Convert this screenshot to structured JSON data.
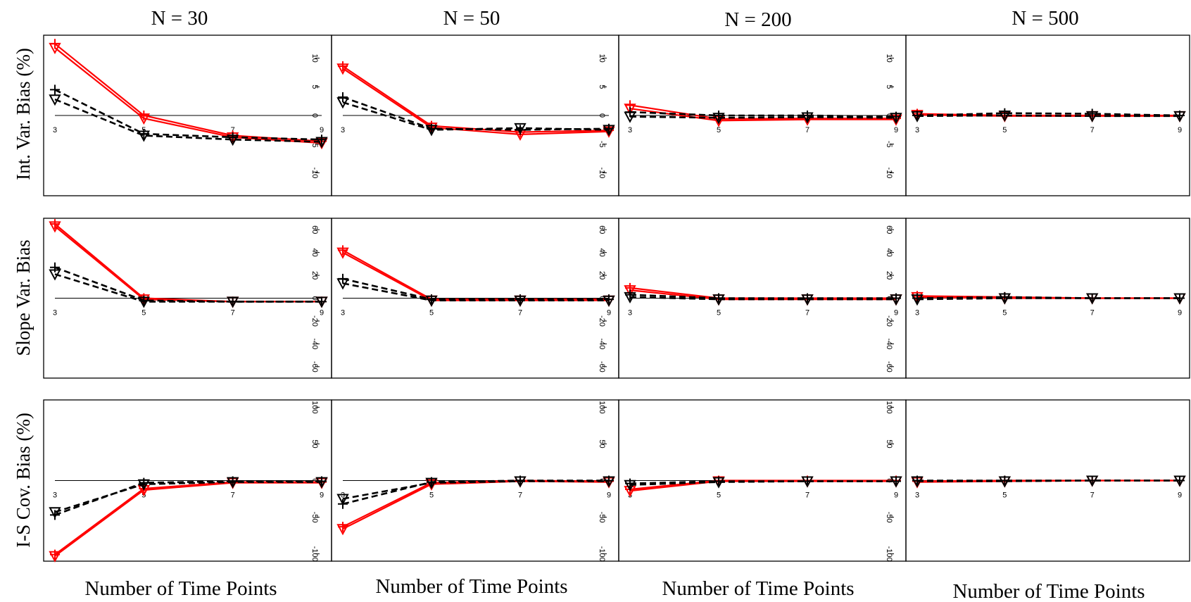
{
  "figure": {
    "column_titles": [
      "N = 30",
      "N = 50",
      "N = 200",
      "N = 500"
    ],
    "row_labels": [
      "Int. Var. Bias (%)",
      "Slope Var. Bias",
      "I-S Cov. Bias (%)"
    ],
    "x_axis_label": "Number of Time Points",
    "colors": {
      "red": "#ff0000",
      "black": "#000000"
    },
    "marker_shapes": [
      "plus",
      "triangle-down"
    ]
  },
  "chart_data": [
    {
      "type": "line",
      "row": "Int. Var. Bias (%)",
      "column": "N = 30",
      "x": [
        3,
        5,
        7,
        9
      ],
      "ylim": [
        -14,
        14
      ],
      "yticks": [
        -10,
        -5,
        0,
        5,
        10
      ],
      "series": [
        {
          "color": "#ff0000",
          "style": "solid",
          "marker": "plus",
          "values": [
            12.5,
            0.0,
            -3.5,
            -4.5
          ]
        },
        {
          "color": "#ff0000",
          "style": "solid",
          "marker": "triangle-down",
          "values": [
            11.8,
            -0.5,
            -3.8,
            -4.8
          ]
        },
        {
          "color": "#000000",
          "style": "dashed",
          "marker": "plus",
          "values": [
            4.5,
            -3.2,
            -3.8,
            -4.2
          ]
        },
        {
          "color": "#000000",
          "style": "dashed",
          "marker": "triangle-down",
          "values": [
            2.8,
            -3.5,
            -4.2,
            -4.6
          ]
        }
      ]
    },
    {
      "type": "line",
      "row": "Int. Var. Bias (%)",
      "column": "N = 50",
      "x": [
        3,
        5,
        7,
        9
      ],
      "ylim": [
        -14,
        14
      ],
      "yticks": [
        -10,
        -5,
        0,
        5,
        10
      ],
      "series": [
        {
          "color": "#ff0000",
          "style": "solid",
          "marker": "plus",
          "values": [
            8.6,
            -1.8,
            -2.9,
            -2.6
          ]
        },
        {
          "color": "#ff0000",
          "style": "solid",
          "marker": "triangle-down",
          "values": [
            8.2,
            -2.1,
            -3.3,
            -2.8
          ]
        },
        {
          "color": "#000000",
          "style": "dashed",
          "marker": "plus",
          "values": [
            3.2,
            -2.3,
            -2.5,
            -2.3
          ]
        },
        {
          "color": "#000000",
          "style": "dashed",
          "marker": "triangle-down",
          "values": [
            2.3,
            -2.5,
            -2.2,
            -2.5
          ]
        }
      ]
    },
    {
      "type": "line",
      "row": "Int. Var. Bias (%)",
      "column": "N = 200",
      "x": [
        3,
        5,
        7,
        9
      ],
      "ylim": [
        -14,
        14
      ],
      "yticks": [
        -10,
        -5,
        0,
        5,
        10
      ],
      "series": [
        {
          "color": "#ff0000",
          "style": "solid",
          "marker": "plus",
          "values": [
            1.8,
            -0.6,
            -0.5,
            -0.5
          ]
        },
        {
          "color": "#ff0000",
          "style": "solid",
          "marker": "triangle-down",
          "values": [
            1.2,
            -0.9,
            -0.7,
            -0.7
          ]
        },
        {
          "color": "#000000",
          "style": "dashed",
          "marker": "plus",
          "values": [
            0.6,
            0.0,
            0.0,
            -0.2
          ]
        },
        {
          "color": "#000000",
          "style": "dashed",
          "marker": "triangle-down",
          "values": [
            -0.2,
            -0.4,
            -0.3,
            -0.4
          ]
        }
      ]
    },
    {
      "type": "line",
      "row": "Int. Var. Bias (%)",
      "column": "N = 500",
      "x": [
        3,
        5,
        7,
        9
      ],
      "ylim": [
        -14,
        14
      ],
      "yticks": [
        -10,
        -5,
        0,
        5,
        10
      ],
      "series": [
        {
          "color": "#ff0000",
          "style": "solid",
          "marker": "plus",
          "values": [
            0.3,
            0.0,
            0.0,
            0.0
          ]
        },
        {
          "color": "#ff0000",
          "style": "solid",
          "marker": "triangle-down",
          "values": [
            0.1,
            -0.1,
            -0.1,
            -0.1
          ]
        },
        {
          "color": "#000000",
          "style": "dashed",
          "marker": "plus",
          "values": [
            0.0,
            0.4,
            0.3,
            0.0
          ]
        },
        {
          "color": "#000000",
          "style": "dashed",
          "marker": "triangle-down",
          "values": [
            -0.1,
            0.0,
            -0.1,
            -0.1
          ]
        }
      ]
    },
    {
      "type": "line",
      "row": "Slope Var. Bias",
      "column": "N = 30",
      "x": [
        3,
        5,
        7,
        9
      ],
      "ylim": [
        -70,
        70
      ],
      "yticks": [
        -60,
        -40,
        -20,
        0,
        20,
        40,
        60
      ],
      "series": [
        {
          "color": "#ff0000",
          "style": "solid",
          "marker": "plus",
          "values": [
            65,
            0,
            -3,
            -3
          ]
        },
        {
          "color": "#ff0000",
          "style": "solid",
          "marker": "triangle-down",
          "values": [
            63,
            -1,
            -3,
            -3
          ]
        },
        {
          "color": "#000000",
          "style": "dashed",
          "marker": "plus",
          "values": [
            27,
            -2,
            -3,
            -3
          ]
        },
        {
          "color": "#000000",
          "style": "dashed",
          "marker": "triangle-down",
          "values": [
            21,
            -3,
            -3,
            -3
          ]
        }
      ]
    },
    {
      "type": "line",
      "row": "Slope Var. Bias",
      "column": "N = 50",
      "x": [
        3,
        5,
        7,
        9
      ],
      "ylim": [
        -70,
        70
      ],
      "yticks": [
        -60,
        -40,
        -20,
        0,
        20,
        40,
        60
      ],
      "series": [
        {
          "color": "#ff0000",
          "style": "solid",
          "marker": "plus",
          "values": [
            42,
            -1,
            -1,
            -1
          ]
        },
        {
          "color": "#ff0000",
          "style": "solid",
          "marker": "triangle-down",
          "values": [
            40,
            -2,
            -2,
            -2
          ]
        },
        {
          "color": "#000000",
          "style": "dashed",
          "marker": "plus",
          "values": [
            17,
            -1,
            -1,
            -1
          ]
        },
        {
          "color": "#000000",
          "style": "dashed",
          "marker": "triangle-down",
          "values": [
            13,
            -2,
            -2,
            -2
          ]
        }
      ]
    },
    {
      "type": "line",
      "row": "Slope Var. Bias",
      "column": "N = 200",
      "x": [
        3,
        5,
        7,
        9
      ],
      "ylim": [
        -70,
        70
      ],
      "yticks": [
        -60,
        -40,
        -20,
        0,
        20,
        40,
        60
      ],
      "series": [
        {
          "color": "#ff0000",
          "style": "solid",
          "marker": "plus",
          "values": [
            9,
            0,
            0,
            0
          ]
        },
        {
          "color": "#ff0000",
          "style": "solid",
          "marker": "triangle-down",
          "values": [
            7,
            -1,
            -1,
            -1
          ]
        },
        {
          "color": "#000000",
          "style": "dashed",
          "marker": "plus",
          "values": [
            3,
            0,
            0,
            0
          ]
        },
        {
          "color": "#000000",
          "style": "dashed",
          "marker": "triangle-down",
          "values": [
            1,
            -1,
            -1,
            -1
          ]
        }
      ]
    },
    {
      "type": "line",
      "row": "Slope Var. Bias",
      "column": "N = 500",
      "x": [
        3,
        5,
        7,
        9
      ],
      "ylim": [
        -70,
        70
      ],
      "yticks": [
        -60,
        -40,
        -20,
        0,
        20,
        40,
        60
      ],
      "series": [
        {
          "color": "#ff0000",
          "style": "solid",
          "marker": "plus",
          "values": [
            2,
            1,
            0,
            0
          ]
        },
        {
          "color": "#ff0000",
          "style": "solid",
          "marker": "triangle-down",
          "values": [
            1,
            0,
            0,
            0
          ]
        },
        {
          "color": "#000000",
          "style": "dashed",
          "marker": "plus",
          "values": [
            0,
            1,
            0,
            0
          ]
        },
        {
          "color": "#000000",
          "style": "dashed",
          "marker": "triangle-down",
          "values": [
            -1,
            0,
            0,
            0
          ]
        }
      ]
    },
    {
      "type": "line",
      "row": "I-S Cov. Bias (%)",
      "column": "N = 30",
      "x": [
        3,
        5,
        7,
        9
      ],
      "ylim": [
        -110,
        110
      ],
      "yticks": [
        -100,
        -50,
        0,
        50,
        100
      ],
      "series": [
        {
          "color": "#ff0000",
          "style": "solid",
          "marker": "plus",
          "values": [
            -101,
            -11,
            -2,
            -2
          ]
        },
        {
          "color": "#ff0000",
          "style": "solid",
          "marker": "triangle-down",
          "values": [
            -103,
            -13,
            -3,
            -3
          ]
        },
        {
          "color": "#000000",
          "style": "dashed",
          "marker": "plus",
          "values": [
            -47,
            -3,
            -1,
            -1
          ]
        },
        {
          "color": "#000000",
          "style": "dashed",
          "marker": "triangle-down",
          "values": [
            -43,
            -5,
            -2,
            -2
          ]
        }
      ]
    },
    {
      "type": "line",
      "row": "I-S Cov. Bias (%)",
      "column": "N = 50",
      "x": [
        3,
        5,
        7,
        9
      ],
      "ylim": [
        -110,
        110
      ],
      "yticks": [
        -100,
        -50,
        0,
        50,
        100
      ],
      "series": [
        {
          "color": "#ff0000",
          "style": "solid",
          "marker": "plus",
          "values": [
            -63,
            -3,
            0,
            -1
          ]
        },
        {
          "color": "#ff0000",
          "style": "solid",
          "marker": "triangle-down",
          "values": [
            -66,
            -5,
            -1,
            -2
          ]
        },
        {
          "color": "#000000",
          "style": "dashed",
          "marker": "plus",
          "values": [
            -32,
            -2,
            0,
            0
          ]
        },
        {
          "color": "#000000",
          "style": "dashed",
          "marker": "triangle-down",
          "values": [
            -25,
            -3,
            -1,
            -1
          ]
        }
      ]
    },
    {
      "type": "line",
      "row": "I-S Cov. Bias (%)",
      "column": "N = 200",
      "x": [
        3,
        5,
        7,
        9
      ],
      "ylim": [
        -110,
        110
      ],
      "yticks": [
        -100,
        -50,
        0,
        50,
        100
      ],
      "series": [
        {
          "color": "#ff0000",
          "style": "solid",
          "marker": "plus",
          "values": [
            -12,
            0,
            0,
            0
          ]
        },
        {
          "color": "#ff0000",
          "style": "solid",
          "marker": "triangle-down",
          "values": [
            -14,
            -1,
            -1,
            -1
          ]
        },
        {
          "color": "#000000",
          "style": "dashed",
          "marker": "plus",
          "values": [
            -4,
            -1,
            -1,
            -1
          ]
        },
        {
          "color": "#000000",
          "style": "dashed",
          "marker": "triangle-down",
          "values": [
            -6,
            -2,
            -1,
            -1
          ]
        }
      ]
    },
    {
      "type": "line",
      "row": "I-S Cov. Bias (%)",
      "column": "N = 500",
      "x": [
        3,
        5,
        7,
        9
      ],
      "ylim": [
        -110,
        110
      ],
      "yticks": [
        -100,
        -50,
        0,
        50,
        100
      ],
      "series": [
        {
          "color": "#ff0000",
          "style": "solid",
          "marker": "plus",
          "values": [
            -1,
            0,
            0,
            0
          ]
        },
        {
          "color": "#ff0000",
          "style": "solid",
          "marker": "triangle-down",
          "values": [
            -2,
            -1,
            0,
            0
          ]
        },
        {
          "color": "#000000",
          "style": "dashed",
          "marker": "plus",
          "values": [
            0,
            0,
            0,
            0
          ]
        },
        {
          "color": "#000000",
          "style": "dashed",
          "marker": "triangle-down",
          "values": [
            -1,
            -1,
            0,
            0
          ]
        }
      ]
    }
  ]
}
